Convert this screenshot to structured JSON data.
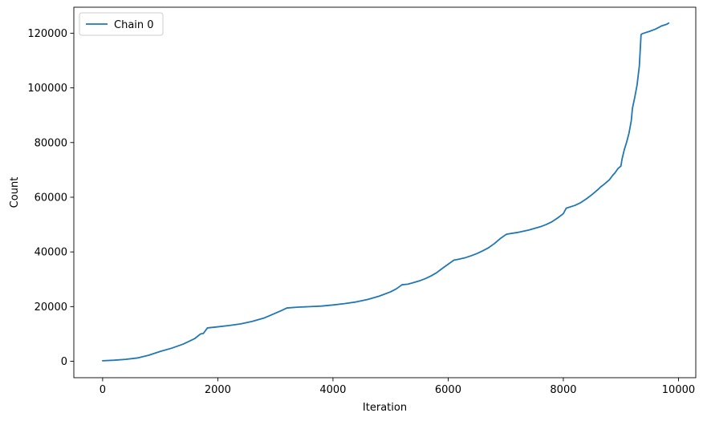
{
  "chart_data": {
    "type": "line",
    "title": "",
    "xlabel": "Iteration",
    "ylabel": "Count",
    "xlim": [
      -500,
      10300
    ],
    "ylim": [
      -6000,
      129500
    ],
    "xticks": [
      0,
      2000,
      4000,
      6000,
      8000,
      10000
    ],
    "xtick_labels": [
      "0",
      "2000",
      "4000",
      "6000",
      "8000",
      "10000"
    ],
    "yticks": [
      0,
      20000,
      40000,
      60000,
      80000,
      100000,
      120000
    ],
    "ytick_labels": [
      "0",
      "20000",
      "40000",
      "60000",
      "80000",
      "100000",
      "120000"
    ],
    "grid": false,
    "legend_position": "top-left",
    "series": [
      {
        "name": "Chain 0",
        "color": "#1f77b4",
        "x": [
          0,
          200,
          400,
          600,
          800,
          1000,
          1200,
          1400,
          1500,
          1600,
          1700,
          1750,
          1820,
          2000,
          2200,
          2400,
          2600,
          2800,
          3000,
          3100,
          3200,
          3400,
          3600,
          3800,
          4000,
          4200,
          4400,
          4600,
          4800,
          5000,
          5100,
          5200,
          5300,
          5400,
          5500,
          5600,
          5700,
          5800,
          5900,
          6000,
          6100,
          6150,
          6200,
          6300,
          6400,
          6500,
          6600,
          6700,
          6800,
          6900,
          7000,
          7020,
          7200,
          7400,
          7600,
          7700,
          7800,
          7900,
          8000,
          8050,
          8200,
          8300,
          8400,
          8500,
          8600,
          8650,
          8700,
          8800,
          8850,
          8900,
          8950,
          9000,
          9020,
          9060,
          9100,
          9140,
          9180,
          9200,
          9240,
          9280,
          9320,
          9350,
          9370,
          9500,
          9600,
          9700,
          9800,
          9830
        ],
        "values": [
          200,
          400,
          700,
          1200,
          2200,
          3600,
          4800,
          6300,
          7300,
          8300,
          10000,
          10200,
          12200,
          12600,
          13100,
          13700,
          14600,
          15800,
          17600,
          18500,
          19500,
          19800,
          20000,
          20200,
          20600,
          21100,
          21700,
          22600,
          23800,
          25400,
          26500,
          28000,
          28200,
          28800,
          29400,
          30200,
          31200,
          32400,
          34000,
          35500,
          37000,
          37200,
          37400,
          37900,
          38600,
          39400,
          40400,
          41500,
          43000,
          44800,
          46300,
          46500,
          47100,
          48000,
          49200,
          50000,
          51000,
          52400,
          54000,
          56000,
          57000,
          58000,
          59400,
          61000,
          62800,
          63800,
          64600,
          66400,
          67800,
          69000,
          70500,
          71400,
          74000,
          77500,
          80200,
          83400,
          88000,
          92500,
          96500,
          101000,
          108000,
          119500,
          119800,
          120700,
          121500,
          122600,
          123300,
          123700
        ]
      }
    ]
  }
}
